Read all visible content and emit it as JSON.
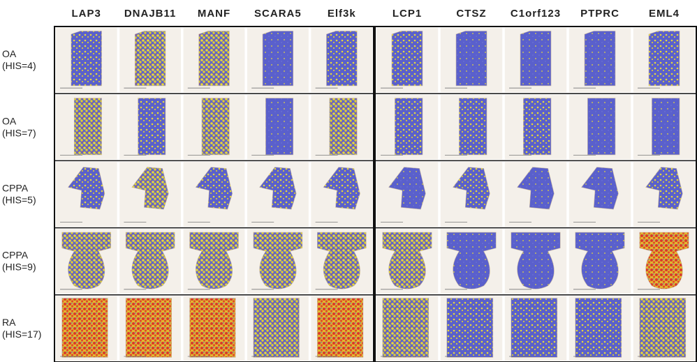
{
  "columns": [
    "LAP3",
    "DNAJB11",
    "MANF",
    "SCARA5",
    "Elf3k",
    "LCP1",
    "CTSZ",
    "C1orf123",
    "PTPRC",
    "EML4"
  ],
  "rows": [
    {
      "group": "OA",
      "score": "(HIS=4)"
    },
    {
      "group": "OA",
      "score": "(HIS=7)"
    },
    {
      "group": "CPPA",
      "score": "(HIS=5)"
    },
    {
      "group": "CPPA",
      "score": "(HIS=9)"
    },
    {
      "group": "RA",
      "score": "(HIS=17)"
    }
  ]
}
